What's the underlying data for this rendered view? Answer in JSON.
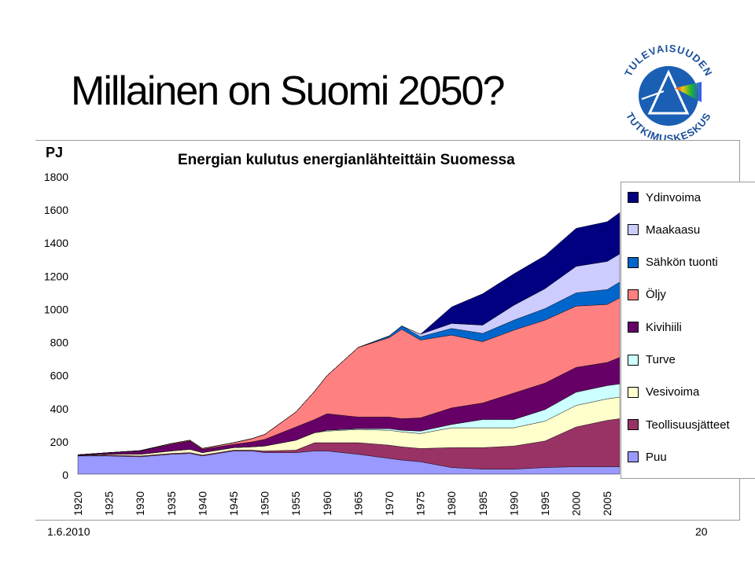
{
  "slide": {
    "title": "Millainen on Suomi 2050?",
    "date": "1.6.2010",
    "page_number": "20"
  },
  "logo": {
    "arc_text_top": "TULEVAISUUDEN",
    "arc_text_bottom": "TUTKIMUSKESKUS",
    "icon": "prism-triangle-logo"
  },
  "chart_data": {
    "type": "area",
    "stacked": true,
    "title": "Energian kulutus energianlähteittäin Suomessa",
    "ylabel": "PJ",
    "ylim": [
      0,
      1800
    ],
    "yticks": [
      0,
      200,
      400,
      600,
      800,
      1000,
      1200,
      1400,
      1600,
      1800
    ],
    "xlim": [
      1920,
      2007
    ],
    "xticks": [
      1920,
      1925,
      1930,
      1935,
      1940,
      1945,
      1950,
      1955,
      1960,
      1965,
      1970,
      1975,
      1980,
      1985,
      1990,
      1995,
      2000,
      2005
    ],
    "grid": false,
    "legend_position": "right",
    "x": [
      1920,
      1925,
      1930,
      1935,
      1938,
      1940,
      1945,
      1948,
      1950,
      1955,
      1958,
      1960,
      1965,
      1970,
      1972,
      1975,
      1980,
      1985,
      1990,
      1995,
      2000,
      2005,
      2007
    ],
    "series": [
      {
        "name": "Puu",
        "color": "#9999ff",
        "values": [
          110,
          110,
          105,
          120,
          125,
          110,
          140,
          140,
          130,
          130,
          140,
          140,
          120,
          95,
          85,
          75,
          40,
          30,
          30,
          40,
          45,
          45,
          45
        ]
      },
      {
        "name": "Teollisuusjätteet",
        "color": "#993366",
        "values": [
          0,
          5,
          5,
          5,
          5,
          5,
          5,
          5,
          10,
          15,
          50,
          50,
          70,
          80,
          80,
          80,
          120,
          130,
          140,
          160,
          240,
          280,
          290
        ]
      },
      {
        "name": "Vesivoima",
        "color": "#ffffcc",
        "values": [
          2,
          5,
          10,
          15,
          20,
          15,
          15,
          20,
          30,
          60,
          60,
          70,
          80,
          90,
          90,
          90,
          120,
          120,
          110,
          120,
          130,
          130,
          130
        ]
      },
      {
        "name": "Turve",
        "color": "#ccffff",
        "values": [
          0,
          0,
          0,
          0,
          0,
          0,
          0,
          0,
          0,
          0,
          0,
          5,
          5,
          10,
          10,
          15,
          20,
          50,
          50,
          70,
          80,
          80,
          80
        ]
      },
      {
        "name": "Kivihiili",
        "color": "#660066",
        "values": [
          5,
          10,
          20,
          40,
          50,
          20,
          20,
          30,
          40,
          80,
          80,
          100,
          70,
          70,
          70,
          80,
          100,
          100,
          160,
          160,
          150,
          140,
          160
        ]
      },
      {
        "name": "Öljy",
        "color": "#ff8080",
        "values": [
          0,
          0,
          2,
          5,
          5,
          5,
          10,
          20,
          30,
          90,
          170,
          230,
          420,
          480,
          540,
          470,
          440,
          370,
          380,
          380,
          370,
          350,
          360
        ]
      },
      {
        "name": "Sähkön tuonti",
        "color": "#0066cc",
        "values": [
          0,
          0,
          0,
          0,
          0,
          0,
          0,
          0,
          0,
          0,
          0,
          0,
          0,
          10,
          20,
          20,
          40,
          50,
          60,
          70,
          80,
          90,
          95
        ]
      },
      {
        "name": "Maakaasu",
        "color": "#ccccff",
        "values": [
          0,
          0,
          0,
          0,
          0,
          0,
          0,
          0,
          0,
          0,
          0,
          0,
          0,
          0,
          0,
          15,
          30,
          50,
          90,
          120,
          160,
          170,
          170
        ]
      },
      {
        "name": "Ydinvoima",
        "color": "#000080",
        "values": [
          0,
          0,
          0,
          0,
          0,
          0,
          0,
          0,
          0,
          0,
          0,
          0,
          0,
          0,
          0,
          0,
          100,
          190,
          190,
          200,
          230,
          240,
          250
        ]
      }
    ]
  }
}
